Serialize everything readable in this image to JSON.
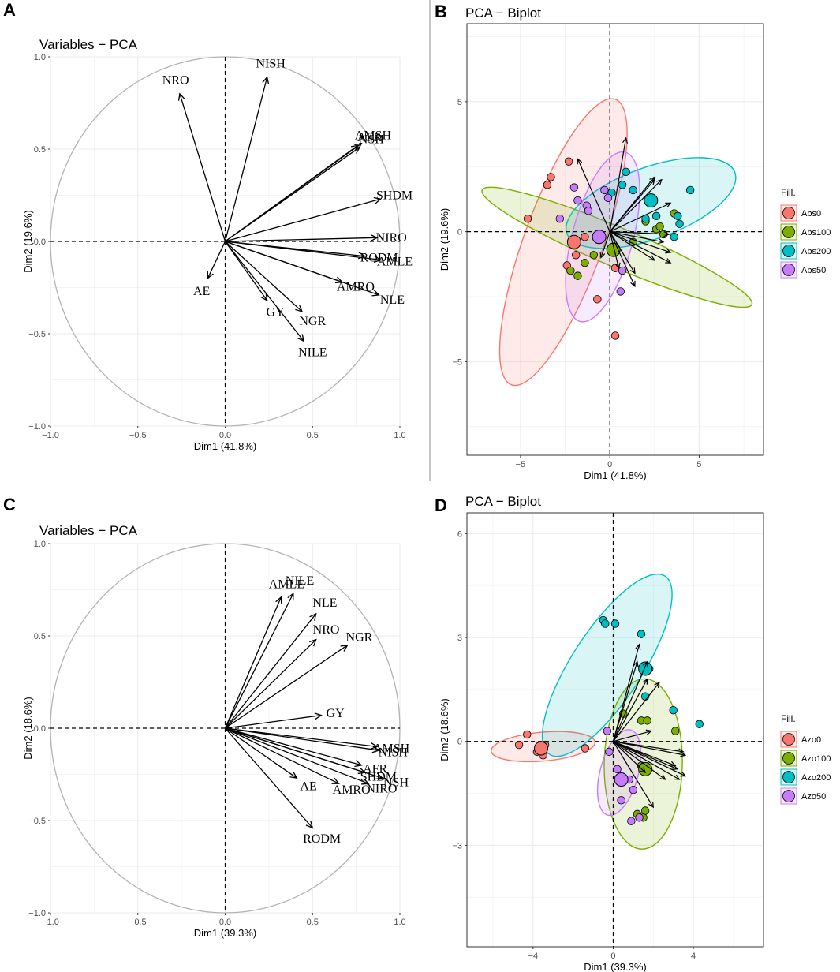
{
  "panels": {
    "A": {
      "letter": "A"
    },
    "B": {
      "letter": "B"
    },
    "C": {
      "letter": "C"
    },
    "D": {
      "letter": "D"
    }
  },
  "colors": {
    "Abs0": "#F8766D",
    "Abs100": "#7CAE00",
    "Abs200": "#00BFC4",
    "Abs50": "#C77CFF",
    "Azo0": "#F8766D",
    "Azo100": "#7CAE00",
    "Azo200": "#00BFC4",
    "Azo50": "#C77CFF"
  },
  "chart_data": [
    {
      "id": "A",
      "type": "scatter",
      "subtype": "pca-variables",
      "title": "Variables − PCA",
      "xlabel": "Dim1 (41.8%)",
      "ylabel": "Dim2 (19.6%)",
      "xlim": [
        -1.0,
        1.0
      ],
      "ylim": [
        -1.0,
        1.0
      ],
      "xticks": [
        -1.0,
        -0.5,
        0.0,
        0.5,
        1.0
      ],
      "yticks": [
        -1.0,
        -0.5,
        0.0,
        0.5,
        1.0
      ],
      "xtick_labels": [
        "−1.0",
        "−0.5",
        "0.0",
        "0.5",
        "1.0"
      ],
      "ytick_labels": [
        "−1.0",
        "−0.5",
        "0.0",
        "0.5",
        "1.0"
      ],
      "vectors": [
        {
          "name": "NRO",
          "x": -0.26,
          "y": 0.8
        },
        {
          "name": "NISH",
          "x": 0.24,
          "y": 0.89
        },
        {
          "name": "AFR",
          "x": 0.76,
          "y": 0.52
        },
        {
          "name": "AMSH",
          "x": 0.78,
          "y": 0.53
        },
        {
          "name": "NSH",
          "x": 0.77,
          "y": 0.51
        },
        {
          "name": "SHDM",
          "x": 0.89,
          "y": 0.23
        },
        {
          "name": "NIRO",
          "x": 0.87,
          "y": 0.02
        },
        {
          "name": "RODM",
          "x": 0.8,
          "y": -0.08
        },
        {
          "name": "AMLE",
          "x": 0.89,
          "y": -0.1
        },
        {
          "name": "AMRO",
          "x": 0.67,
          "y": -0.22
        },
        {
          "name": "NLE",
          "x": 0.88,
          "y": -0.29
        },
        {
          "name": "AE",
          "x": -0.1,
          "y": -0.2
        },
        {
          "name": "GY",
          "x": 0.24,
          "y": -0.32
        },
        {
          "name": "NGR",
          "x": 0.44,
          "y": -0.38
        },
        {
          "name": "NILE",
          "x": 0.45,
          "y": -0.54
        }
      ]
    },
    {
      "id": "B",
      "type": "scatter",
      "subtype": "pca-biplot",
      "title": "PCA − Biplot",
      "xlabel": "Dim1 (41.8%)",
      "ylabel": "Dim2 (19.6%)",
      "xlim": [
        -8.0,
        8.6
      ],
      "ylim": [
        -8.6,
        8.0
      ],
      "xticks": [
        -5,
        0,
        5
      ],
      "yticks": [
        -5,
        0,
        5
      ],
      "xtick_labels": [
        "−5",
        "0",
        "5"
      ],
      "ytick_labels": [
        "−5",
        "0",
        "5"
      ],
      "legend_title": "Fill.",
      "groups": [
        {
          "name": "Abs0",
          "centroid": [
            -2.0,
            -0.4
          ],
          "ellipse": {
            "cx": -2.6,
            "cy": -0.4,
            "a": 8.5,
            "b": 2.2,
            "angle": -70
          },
          "points": [
            [
              -4.6,
              0.5
            ],
            [
              -3.5,
              1.8
            ],
            [
              -3.3,
              2.1
            ],
            [
              -2.3,
              2.7
            ],
            [
              -2.4,
              -1.3
            ],
            [
              -1.4,
              -0.2
            ],
            [
              -0.7,
              -2.6
            ],
            [
              0.3,
              -1.4
            ],
            [
              0.3,
              -4.0
            ],
            [
              -1.9,
              -0.9
            ]
          ]
        },
        {
          "name": "Abs100",
          "centroid": [
            0.2,
            -0.7
          ],
          "ellipse": {
            "cx": 0.4,
            "cy": -0.6,
            "a": 8.2,
            "b": 1.1,
            "angle": 23
          },
          "points": [
            [
              -2.2,
              -1.5
            ],
            [
              -1.8,
              -1.7
            ],
            [
              -1.4,
              -1.2
            ],
            [
              -0.9,
              -0.9
            ],
            [
              1.3,
              -0.4
            ],
            [
              2.0,
              0.4
            ],
            [
              2.6,
              0.1
            ],
            [
              2.8,
              0.2
            ],
            [
              3.6,
              0.7
            ],
            [
              3.0,
              -0.1
            ]
          ]
        },
        {
          "name": "Abs200",
          "centroid": [
            2.3,
            1.2
          ],
          "ellipse": {
            "cx": 2.3,
            "cy": 1.1,
            "a": 5.0,
            "b": 2.0,
            "angle": -20
          },
          "points": [
            [
              0.1,
              1.5
            ],
            [
              0.7,
              1.8
            ],
            [
              0.9,
              2.3
            ],
            [
              1.3,
              1.6
            ],
            [
              4.5,
              1.6
            ],
            [
              3.9,
              0.3
            ],
            [
              3.8,
              0.6
            ],
            [
              3.6,
              -0.2
            ],
            [
              2.0,
              0.5
            ],
            [
              2.6,
              0.6
            ]
          ]
        },
        {
          "name": "Abs50",
          "centroid": [
            -0.6,
            -0.2
          ],
          "ellipse": {
            "cx": -0.4,
            "cy": -0.2,
            "a": 4.9,
            "b": 1.7,
            "angle": -75
          },
          "points": [
            [
              -2.8,
              0.5
            ],
            [
              -2.0,
              1.7
            ],
            [
              -1.8,
              1.2
            ],
            [
              -1.3,
              1.0
            ],
            [
              -0.3,
              1.6
            ],
            [
              0.7,
              -1.5
            ],
            [
              0.6,
              -2.3
            ],
            [
              -1.2,
              0.8
            ],
            [
              -0.1,
              1.3
            ],
            [
              0.2,
              -0.6
            ]
          ]
        }
      ],
      "arrows": [
        [
          -1.8,
          2.8
        ],
        [
          0.9,
          3.6
        ],
        [
          2.5,
          2.0
        ],
        [
          2.5,
          2.1
        ],
        [
          2.9,
          2.0
        ],
        [
          3.4,
          1.1
        ],
        [
          3.3,
          -0.1
        ],
        [
          3.0,
          -0.4
        ],
        [
          3.4,
          -0.8
        ],
        [
          2.5,
          -1.1
        ],
        [
          3.4,
          -1.2
        ],
        [
          -0.5,
          -1.0
        ],
        [
          0.5,
          -1.4
        ],
        [
          1.4,
          -1.6
        ],
        [
          1.4,
          -2.1
        ]
      ]
    },
    {
      "id": "C",
      "type": "scatter",
      "subtype": "pca-variables",
      "title": "Variables − PCA",
      "xlabel": "Dim1 (39.3%)",
      "ylabel": "Dim2 (18.6%)",
      "xlim": [
        -1.0,
        1.0
      ],
      "ylim": [
        -1.0,
        1.0
      ],
      "xticks": [
        -1.0,
        -0.5,
        0.0,
        0.5,
        1.0
      ],
      "yticks": [
        -1.0,
        -0.5,
        0.0,
        0.5,
        1.0
      ],
      "xtick_labels": [
        "−1.0",
        "−0.5",
        "0.0",
        "0.5",
        "1.0"
      ],
      "ytick_labels": [
        "−1.0",
        "−0.5",
        "0.0",
        "0.5",
        "1.0"
      ],
      "vectors": [
        {
          "name": "AMLE",
          "x": 0.32,
          "y": 0.71
        },
        {
          "name": "NILE",
          "x": 0.39,
          "y": 0.73
        },
        {
          "name": "NLE",
          "x": 0.52,
          "y": 0.62
        },
        {
          "name": "NRO",
          "x": 0.52,
          "y": 0.48
        },
        {
          "name": "NGR",
          "x": 0.7,
          "y": 0.45
        },
        {
          "name": "GY",
          "x": 0.55,
          "y": 0.07
        },
        {
          "name": "AMSH",
          "x": 0.87,
          "y": -0.1
        },
        {
          "name": "NISH",
          "x": 0.88,
          "y": -0.12
        },
        {
          "name": "AFR",
          "x": 0.78,
          "y": -0.2
        },
        {
          "name": "SHDM",
          "x": 0.8,
          "y": -0.24
        },
        {
          "name": "AE",
          "x": 0.41,
          "y": -0.27
        },
        {
          "name": "AMRO",
          "x": 0.65,
          "y": -0.3
        },
        {
          "name": "NIRO",
          "x": 0.82,
          "y": -0.3
        },
        {
          "name": "NSH",
          "x": 0.9,
          "y": -0.27
        },
        {
          "name": "RODM",
          "x": 0.5,
          "y": -0.54
        }
      ]
    },
    {
      "id": "D",
      "type": "scatter",
      "subtype": "pca-biplot",
      "title": "PCA − Biplot",
      "xlabel": "Dim1 (39.3%)",
      "ylabel": "Dim2 (18.6%)",
      "xlim": [
        -7.3,
        7.5
      ],
      "ylim": [
        -5.93,
        6.6
      ],
      "xticks": [
        -4,
        0,
        4
      ],
      "yticks": [
        -3,
        0,
        3,
        6
      ],
      "xtick_labels": [
        "−4",
        "0",
        "4"
      ],
      "ytick_labels": [
        "−3",
        "0",
        "3",
        "6"
      ],
      "legend_title": "Fill.",
      "groups": [
        {
          "name": "Azo0",
          "centroid": [
            -3.6,
            -0.2
          ],
          "ellipse": {
            "cx": -3.5,
            "cy": -0.15,
            "a": 2.6,
            "b": 0.72,
            "angle": -5
          },
          "points": [
            [
              -4.7,
              -0.1
            ],
            [
              -4.3,
              0.2
            ],
            [
              -3.7,
              -0.2
            ],
            [
              -3.6,
              -0.3
            ],
            [
              -3.5,
              -0.4
            ],
            [
              -1.4,
              -0.2
            ],
            [
              -3.4,
              -0.1
            ],
            [
              -3.8,
              -0.3
            ]
          ]
        },
        {
          "name": "Azo100",
          "centroid": [
            1.6,
            -0.8
          ],
          "ellipse": {
            "cx": 1.5,
            "cy": -0.65,
            "a": 4.25,
            "b": 1.95,
            "angle": -89
          },
          "points": [
            [
              0.5,
              0.8
            ],
            [
              1.4,
              0.6
            ],
            [
              1.7,
              0.6
            ],
            [
              3.1,
              0.3
            ],
            [
              1.2,
              -2.1
            ],
            [
              1.5,
              -2.2
            ],
            [
              1.6,
              -2.0
            ],
            [
              1.4,
              -0.7
            ]
          ]
        },
        {
          "name": "Azo200",
          "centroid": [
            1.6,
            2.1
          ],
          "ellipse": {
            "cx": -0.3,
            "cy": 2.2,
            "a": 5.3,
            "b": 1.75,
            "angle": -57
          },
          "points": [
            [
              -0.5,
              3.5
            ],
            [
              -0.4,
              3.4
            ],
            [
              0.1,
              3.4
            ],
            [
              1.4,
              3.1
            ],
            [
              1.6,
              1.3
            ],
            [
              3.0,
              0.9
            ],
            [
              4.3,
              0.5
            ],
            [
              1.8,
              2.1
            ]
          ]
        },
        {
          "name": "Azo50",
          "centroid": [
            0.4,
            -1.1
          ],
          "ellipse": {
            "cx": 0.3,
            "cy": -0.9,
            "a": 2.2,
            "b": 0.95,
            "angle": -75
          },
          "points": [
            [
              -0.3,
              0.3
            ],
            [
              -0.2,
              -0.3
            ],
            [
              0.4,
              -1.7
            ],
            [
              0.9,
              -2.3
            ],
            [
              1.3,
              -2.2
            ],
            [
              1.0,
              -1.4
            ],
            [
              0.8,
              -1.1
            ],
            [
              0.2,
              -0.8
            ]
          ]
        }
      ],
      "arrows": [
        [
          1.2,
          2.3
        ],
        [
          1.3,
          2.8
        ],
        [
          1.7,
          2.3
        ],
        [
          1.7,
          1.8
        ],
        [
          2.3,
          1.7
        ],
        [
          1.9,
          0.3
        ],
        [
          3.5,
          -0.3
        ],
        [
          3.6,
          -0.4
        ],
        [
          3.1,
          -0.7
        ],
        [
          3.2,
          -0.8
        ],
        [
          1.6,
          -0.9
        ],
        [
          2.6,
          -1.1
        ],
        [
          3.3,
          -1.1
        ],
        [
          3.6,
          -1.0
        ],
        [
          2.0,
          -1.9
        ]
      ]
    }
  ]
}
